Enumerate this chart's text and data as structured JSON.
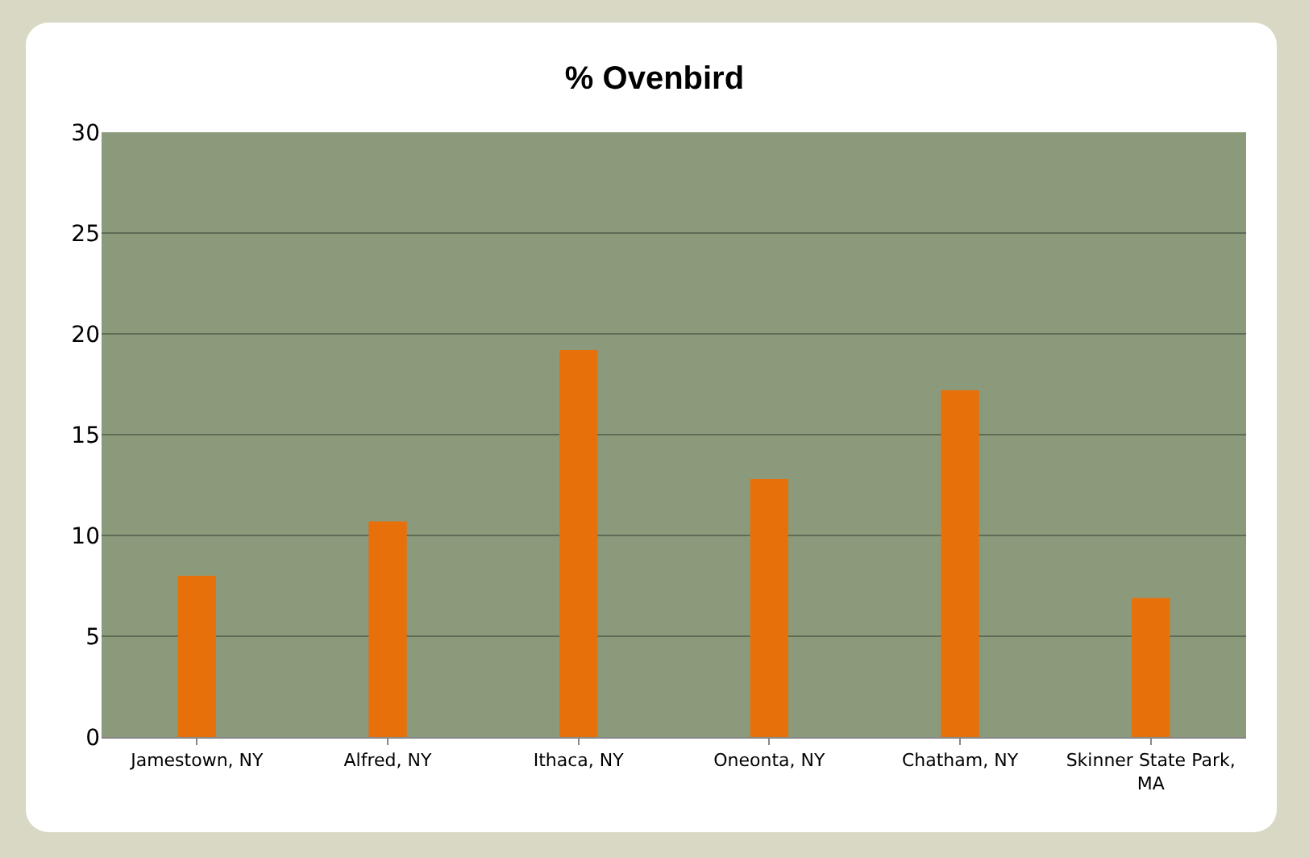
{
  "chart_data": {
    "type": "bar",
    "title": "% Ovenbird",
    "categories": [
      "Jamestown, NY",
      "Alfred, NY",
      "Ithaca, NY",
      "Oneonta, NY",
      "Chatham, NY",
      "Skinner State Park, MA"
    ],
    "values": [
      8,
      10.7,
      19.2,
      12.8,
      17.2,
      6.9
    ],
    "color": "#e8700a",
    "ylim": [
      0,
      30
    ],
    "yticks": [
      0,
      5,
      10,
      15,
      20,
      25,
      30
    ],
    "grid": "y"
  }
}
